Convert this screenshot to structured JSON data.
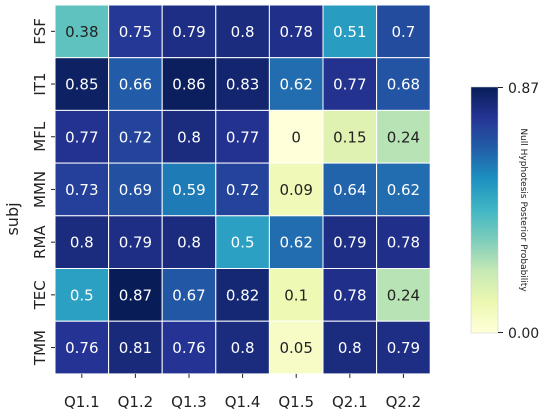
{
  "chart_data": {
    "type": "heatmap",
    "title": "",
    "xlabel": "",
    "ylabel": "subj",
    "x_categories": [
      "Q1.1",
      "Q1.2",
      "Q1.3",
      "Q1.4",
      "Q1.5",
      "Q2.1",
      "Q2.2"
    ],
    "y_categories": [
      "FSF",
      "IT1",
      "MFL",
      "MMN",
      "RMA",
      "TEC",
      "TMM"
    ],
    "values": [
      [
        0.38,
        0.75,
        0.79,
        0.8,
        0.78,
        0.51,
        0.7
      ],
      [
        0.85,
        0.66,
        0.86,
        0.83,
        0.62,
        0.77,
        0.68
      ],
      [
        0.77,
        0.72,
        0.8,
        0.77,
        0,
        0.15,
        0.24
      ],
      [
        0.73,
        0.69,
        0.59,
        0.72,
        0.09,
        0.64,
        0.62
      ],
      [
        0.8,
        0.79,
        0.8,
        0.5,
        0.62,
        0.79,
        0.78
      ],
      [
        0.5,
        0.87,
        0.67,
        0.82,
        0.1,
        0.78,
        0.24
      ],
      [
        0.76,
        0.81,
        0.76,
        0.8,
        0.05,
        0.8,
        0.79
      ]
    ],
    "colorbar": {
      "label": "Null Hyphotesis Posterior Probability",
      "min": 0.0,
      "max": 0.87,
      "min_label": "0.00",
      "max_label": "0.87",
      "colormap": "YlGnBu"
    }
  }
}
